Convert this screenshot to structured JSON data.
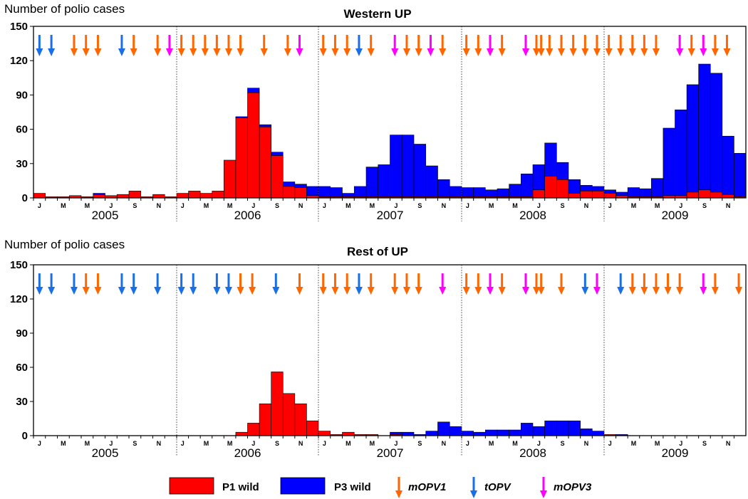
{
  "chart_data": [
    {
      "type": "bar",
      "stacked": true,
      "title": "Western UP",
      "ylabel": "Number of polio cases",
      "ylim": [
        0,
        150
      ],
      "yticks": [
        0,
        30,
        60,
        90,
        120,
        150
      ],
      "years": [
        "2005",
        "2006",
        "2007",
        "2008",
        "2009"
      ],
      "month_ticks": [
        "J",
        "M",
        "M",
        "J",
        "S",
        "N"
      ],
      "series": [
        {
          "name": "P1 wild",
          "color": "#ff0000",
          "values": [
            4,
            1,
            1,
            2,
            1,
            3,
            2,
            3,
            6,
            1,
            3,
            1,
            4,
            6,
            4,
            6,
            33,
            70,
            92,
            62,
            37,
            10,
            9,
            2,
            1,
            1,
            1,
            1,
            1,
            1,
            1,
            1,
            1,
            1,
            1,
            1,
            1,
            1,
            1,
            1,
            1,
            1,
            7,
            19,
            16,
            4,
            6,
            6,
            4,
            2,
            1,
            1,
            1,
            2,
            2,
            5,
            7,
            5,
            3,
            1
          ]
        },
        {
          "name": "P3 wild",
          "color": "#0000ff",
          "values": [
            0,
            0,
            0,
            0,
            0,
            1,
            0,
            0,
            0,
            0,
            0,
            0,
            0,
            0,
            0,
            0,
            0,
            1,
            4,
            2,
            3,
            4,
            3,
            8,
            9,
            8,
            3,
            9,
            26,
            28,
            54,
            54,
            46,
            27,
            15,
            9,
            8,
            8,
            6,
            7,
            11,
            20,
            22,
            29,
            15,
            12,
            5,
            4,
            3,
            3,
            8,
            7,
            16,
            59,
            75,
            94,
            110,
            104,
            51,
            38
          ]
        }
      ],
      "campaigns": [
        {
          "month": 0.5,
          "vaccine": "tOPV"
        },
        {
          "month": 1.5,
          "vaccine": "tOPV"
        },
        {
          "month": 3.4,
          "vaccine": "mOPV1"
        },
        {
          "month": 4.4,
          "vaccine": "mOPV1"
        },
        {
          "month": 5.4,
          "vaccine": "mOPV1"
        },
        {
          "month": 7.4,
          "vaccine": "tOPV"
        },
        {
          "month": 8.4,
          "vaccine": "mOPV1"
        },
        {
          "month": 10.4,
          "vaccine": "mOPV1"
        },
        {
          "month": 11.4,
          "vaccine": "mOPV3"
        },
        {
          "month": 12.4,
          "vaccine": "mOPV1"
        },
        {
          "month": 13.4,
          "vaccine": "mOPV1"
        },
        {
          "month": 14.4,
          "vaccine": "mOPV1"
        },
        {
          "month": 15.4,
          "vaccine": "mOPV1"
        },
        {
          "month": 16.4,
          "vaccine": "mOPV1"
        },
        {
          "month": 17.4,
          "vaccine": "mOPV1"
        },
        {
          "month": 19.4,
          "vaccine": "mOPV1"
        },
        {
          "month": 21.4,
          "vaccine": "mOPV1"
        },
        {
          "month": 22.4,
          "vaccine": "mOPV3"
        },
        {
          "month": 24.4,
          "vaccine": "mOPV1"
        },
        {
          "month": 25.4,
          "vaccine": "mOPV1"
        },
        {
          "month": 26.4,
          "vaccine": "mOPV1"
        },
        {
          "month": 27.4,
          "vaccine": "tOPV"
        },
        {
          "month": 28.4,
          "vaccine": "mOPV1"
        },
        {
          "month": 30.4,
          "vaccine": "mOPV3"
        },
        {
          "month": 31.4,
          "vaccine": "mOPV1"
        },
        {
          "month": 32.4,
          "vaccine": "mOPV1"
        },
        {
          "month": 33.4,
          "vaccine": "mOPV3"
        },
        {
          "month": 34.4,
          "vaccine": "mOPV1"
        },
        {
          "month": 36.4,
          "vaccine": "mOPV1"
        },
        {
          "month": 37.4,
          "vaccine": "mOPV1"
        },
        {
          "month": 38.4,
          "vaccine": "mOPV3"
        },
        {
          "month": 39.4,
          "vaccine": "mOPV1"
        },
        {
          "month": 41.4,
          "vaccine": "mOPV3"
        },
        {
          "month": 42.3,
          "vaccine": "mOPV1"
        },
        {
          "month": 42.7,
          "vaccine": "mOPV1"
        },
        {
          "month": 43.4,
          "vaccine": "mOPV1"
        },
        {
          "month": 44.4,
          "vaccine": "mOPV1"
        },
        {
          "month": 45.4,
          "vaccine": "mOPV1"
        },
        {
          "month": 46.4,
          "vaccine": "mOPV1"
        },
        {
          "month": 47.4,
          "vaccine": "mOPV1"
        },
        {
          "month": 48.4,
          "vaccine": "mOPV1"
        },
        {
          "month": 49.4,
          "vaccine": "mOPV1"
        },
        {
          "month": 50.4,
          "vaccine": "mOPV1"
        },
        {
          "month": 51.4,
          "vaccine": "mOPV1"
        },
        {
          "month": 52.4,
          "vaccine": "mOPV1"
        },
        {
          "month": 54.4,
          "vaccine": "mOPV3"
        },
        {
          "month": 55.4,
          "vaccine": "mOPV1"
        },
        {
          "month": 56.4,
          "vaccine": "mOPV3"
        },
        {
          "month": 57.4,
          "vaccine": "mOPV1"
        },
        {
          "month": 58.4,
          "vaccine": "mOPV1"
        }
      ]
    },
    {
      "type": "bar",
      "stacked": true,
      "title": "Rest of UP",
      "ylabel": "Number of polio cases",
      "ylim": [
        0,
        150
      ],
      "yticks": [
        0,
        30,
        60,
        90,
        120,
        150
      ],
      "years": [
        "2005",
        "2006",
        "2007",
        "2008",
        "2009"
      ],
      "month_ticks": [
        "J",
        "M",
        "M",
        "J",
        "S",
        "N"
      ],
      "series": [
        {
          "name": "P1 wild",
          "color": "#ff0000",
          "values": [
            0,
            0,
            0,
            0,
            0,
            0,
            0,
            0,
            0,
            0,
            0,
            0,
            0,
            0,
            0,
            0,
            0,
            3,
            11,
            28,
            56,
            37,
            28,
            13,
            4,
            1,
            3,
            1,
            1,
            0,
            1,
            0,
            0,
            0,
            0,
            0,
            0,
            0,
            0,
            0,
            0,
            0,
            0,
            0,
            0,
            0,
            0,
            0,
            1,
            0,
            0,
            0,
            0,
            0,
            0,
            0,
            0,
            0,
            0,
            0
          ]
        },
        {
          "name": "P3 wild",
          "color": "#0000ff",
          "values": [
            0,
            0,
            0,
            0,
            0,
            0,
            0,
            0,
            0,
            0,
            0,
            0,
            0,
            0,
            0,
            0,
            0,
            0,
            0,
            0,
            0,
            0,
            0,
            0,
            0,
            0,
            0,
            0,
            0,
            0,
            2,
            3,
            1,
            4,
            12,
            8,
            4,
            3,
            5,
            5,
            5,
            11,
            8,
            13,
            13,
            13,
            6,
            4,
            0,
            1,
            0,
            0,
            0,
            0,
            0,
            0,
            0,
            0,
            0,
            0
          ]
        }
      ],
      "campaigns": [
        {
          "month": 0.5,
          "vaccine": "tOPV"
        },
        {
          "month": 1.5,
          "vaccine": "tOPV"
        },
        {
          "month": 3.4,
          "vaccine": "tOPV"
        },
        {
          "month": 4.4,
          "vaccine": "mOPV1"
        },
        {
          "month": 5.4,
          "vaccine": "mOPV1"
        },
        {
          "month": 7.4,
          "vaccine": "tOPV"
        },
        {
          "month": 8.4,
          "vaccine": "tOPV"
        },
        {
          "month": 10.4,
          "vaccine": "tOPV"
        },
        {
          "month": 12.4,
          "vaccine": "tOPV"
        },
        {
          "month": 13.4,
          "vaccine": "tOPV"
        },
        {
          "month": 15.4,
          "vaccine": "tOPV"
        },
        {
          "month": 16.4,
          "vaccine": "tOPV"
        },
        {
          "month": 17.4,
          "vaccine": "mOPV1"
        },
        {
          "month": 18.4,
          "vaccine": "mOPV1"
        },
        {
          "month": 20.4,
          "vaccine": "tOPV"
        },
        {
          "month": 22.4,
          "vaccine": "mOPV1"
        },
        {
          "month": 24.4,
          "vaccine": "mOPV1"
        },
        {
          "month": 25.4,
          "vaccine": "mOPV1"
        },
        {
          "month": 26.4,
          "vaccine": "mOPV1"
        },
        {
          "month": 27.4,
          "vaccine": "tOPV"
        },
        {
          "month": 28.4,
          "vaccine": "mOPV1"
        },
        {
          "month": 30.4,
          "vaccine": "mOPV1"
        },
        {
          "month": 31.4,
          "vaccine": "mOPV1"
        },
        {
          "month": 32.4,
          "vaccine": "mOPV1"
        },
        {
          "month": 34.4,
          "vaccine": "mOPV3"
        },
        {
          "month": 36.4,
          "vaccine": "mOPV1"
        },
        {
          "month": 37.4,
          "vaccine": "mOPV1"
        },
        {
          "month": 38.4,
          "vaccine": "mOPV3"
        },
        {
          "month": 39.4,
          "vaccine": "mOPV1"
        },
        {
          "month": 41.4,
          "vaccine": "mOPV3"
        },
        {
          "month": 42.3,
          "vaccine": "mOPV1"
        },
        {
          "month": 42.7,
          "vaccine": "mOPV1"
        },
        {
          "month": 44.4,
          "vaccine": "mOPV1"
        },
        {
          "month": 46.4,
          "vaccine": "tOPV"
        },
        {
          "month": 47.4,
          "vaccine": "mOPV3"
        },
        {
          "month": 49.4,
          "vaccine": "tOPV"
        },
        {
          "month": 50.4,
          "vaccine": "mOPV1"
        },
        {
          "month": 51.4,
          "vaccine": "mOPV1"
        },
        {
          "month": 52.4,
          "vaccine": "mOPV1"
        },
        {
          "month": 53.4,
          "vaccine": "mOPV1"
        },
        {
          "month": 54.4,
          "vaccine": "mOPV1"
        },
        {
          "month": 56.4,
          "vaccine": "mOPV3"
        },
        {
          "month": 57.4,
          "vaccine": "mOPV1"
        },
        {
          "month": 59.4,
          "vaccine": "mOPV1"
        }
      ]
    }
  ],
  "legend": {
    "items": [
      {
        "label": "P1 wild",
        "kind": "box",
        "color": "#ff0000"
      },
      {
        "label": "P3 wild",
        "kind": "box",
        "color": "#0000ff"
      },
      {
        "label": "mOPV1",
        "kind": "arrow",
        "color": "#ff6600"
      },
      {
        "label": "tOPV",
        "kind": "arrow",
        "color": "#1a6ee6"
      },
      {
        "label": "mOPV3",
        "kind": "arrow",
        "color": "#ff00ff"
      }
    ]
  },
  "vaccine_colors": {
    "mOPV1": "#ff6600",
    "tOPV": "#1a6ee6",
    "mOPV3": "#ff00ff"
  }
}
